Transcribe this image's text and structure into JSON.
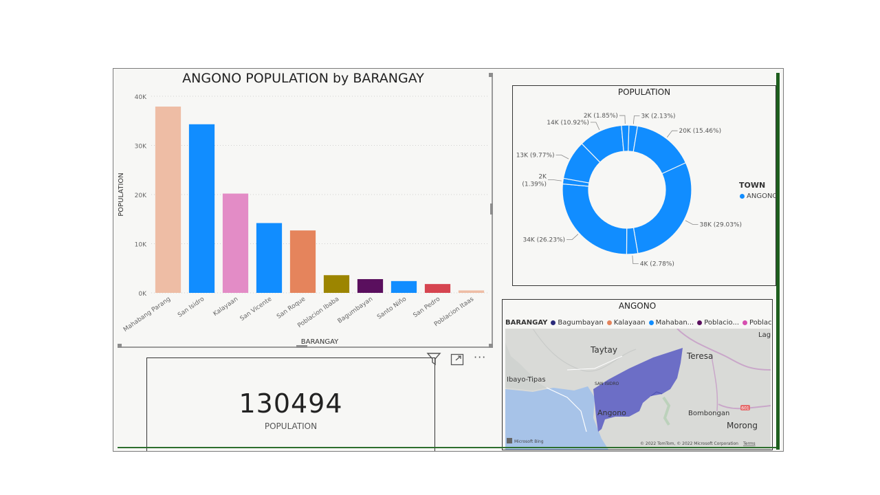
{
  "bar_chart": {
    "title": "ANGONO POPULATION by BARANGAY",
    "xlabel": "BARANGAY",
    "ylabel": "POPULATION",
    "yticks": [
      "0K",
      "10K",
      "20K",
      "30K",
      "40K"
    ]
  },
  "chart_data": [
    {
      "type": "bar",
      "title": "ANGONO POPULATION by BARANGAY",
      "xlabel": "BARANGAY",
      "ylabel": "POPULATION",
      "ylim": [
        0,
        40000
      ],
      "grid": true,
      "categories": [
        "Mahabang Parang",
        "San Isidro",
        "Kalayaan",
        "San Vicente",
        "San Roque",
        "Poblacion Ibaba",
        "Bagumbayan",
        "Santo Niño",
        "San Pedro",
        "Poblacion Itaas"
      ],
      "values": [
        37900,
        34300,
        20200,
        14200,
        12700,
        3600,
        2800,
        2400,
        1800,
        500
      ],
      "colors": [
        "#eebda5",
        "#118dff",
        "#e38cc6",
        "#118dff",
        "#e5845c",
        "#9c8500",
        "#5a0f5e",
        "#118dff",
        "#d64550",
        "#eebda5"
      ]
    },
    {
      "type": "pie",
      "title": "POPULATION",
      "legend_title": "TOWN",
      "legend": [
        "ANGONO"
      ],
      "legend_position": "right",
      "color": "#118dff",
      "slices": [
        {
          "label": "3K (2.13%)",
          "value": 2.13
        },
        {
          "label": "20K (15.46%)",
          "value": 15.46
        },
        {
          "label": "38K (29.03%)",
          "value": 29.03
        },
        {
          "label": "4K (2.78%)",
          "value": 2.78
        },
        {
          "label": "34K (26.23%)",
          "value": 26.23
        },
        {
          "label": "2K (1.39%)",
          "value": 1.39
        },
        {
          "label": "13K (9.77%)",
          "value": 9.77
        },
        {
          "label": "14K (10.92%)",
          "value": 10.92
        },
        {
          "label": "2K (1.85%)",
          "value": 1.85
        }
      ]
    }
  ],
  "kpi": {
    "value": "130494",
    "label": "POPULATION"
  },
  "map": {
    "title": "ANGONO",
    "legend_title": "BARANGAY",
    "legend_items": [
      {
        "label": "Bagumbayan",
        "color": "#2a2a7a"
      },
      {
        "label": "Kalayaan",
        "color": "#e5845c"
      },
      {
        "label": "Mahaban...",
        "color": "#118dff"
      },
      {
        "label": "Poblacio...",
        "color": "#5a0f5e"
      },
      {
        "label": "Poblacio...",
        "color": "#d64fb0"
      }
    ],
    "places": {
      "taytay": "Taytay",
      "teresa": "Teresa",
      "lag": "Lag",
      "ibayo": "Ibayo-Tipas",
      "san_isidro": "SAN ISIDRO",
      "angono": "Angono",
      "bombongan": "Bombongan",
      "morong": "Morong"
    },
    "road_shield": "601",
    "attribution": "© 2022 TomTom, © 2022 Microsoft Corporation",
    "terms": "Terms",
    "bing": "Microsoft Bing"
  },
  "toolbar": {
    "filter_icon": "filter-icon",
    "focus_icon": "focus-mode-icon",
    "more_icon": "more-options-icon",
    "more_label": "···"
  }
}
